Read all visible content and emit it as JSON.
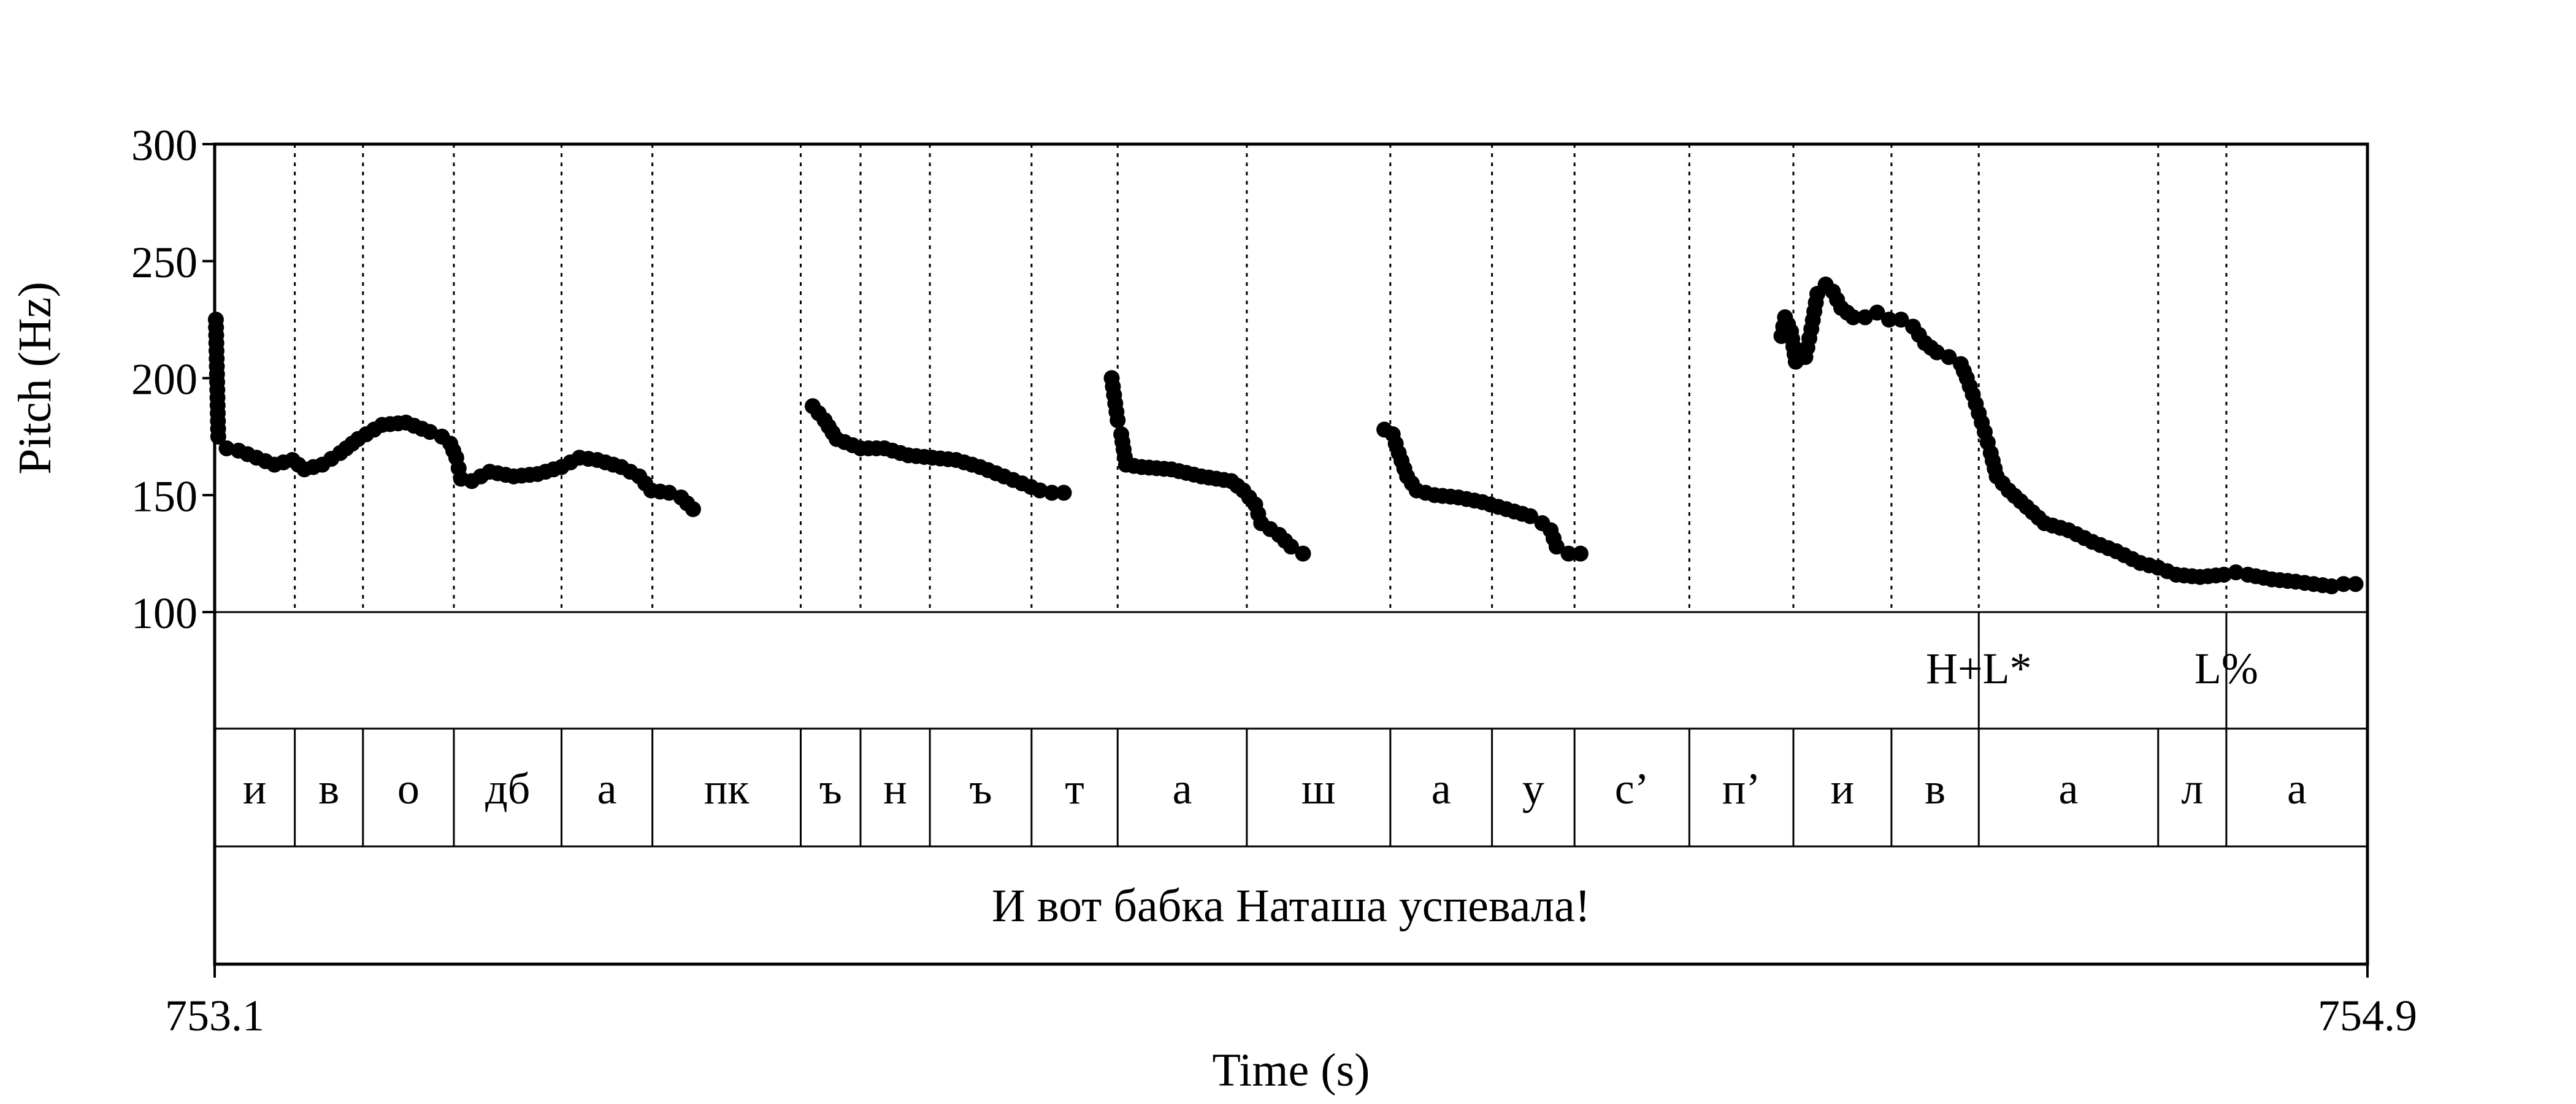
{
  "chart_data": {
    "type": "scatter",
    "xlabel": "Time (s)",
    "ylabel": "Pitch (Hz)",
    "xlim": [
      753.1,
      754.9
    ],
    "ylim": [
      100,
      300
    ],
    "yticks": [
      100,
      150,
      200,
      250,
      300
    ],
    "xtick_labels": [
      "753.1",
      "754.9"
    ],
    "grid": "dotted vertical lines at segment boundaries",
    "point_color": "#000000",
    "segment_boundaries": [
      753.1,
      753.167,
      753.224,
      753.3,
      753.39,
      753.466,
      753.59,
      753.64,
      753.698,
      753.783,
      753.855,
      753.963,
      754.083,
      754.168,
      754.237,
      754.333,
      754.42,
      754.502,
      754.575,
      754.725,
      754.782,
      754.9
    ],
    "segments": [
      "и",
      "в",
      "о",
      "дб",
      "а",
      "пк",
      "ъ",
      "н",
      "ъ",
      "т",
      "а",
      "ш",
      "а",
      "у",
      "с’",
      "п’",
      "и",
      "в",
      "а",
      "л",
      "а"
    ],
    "tones": [
      {
        "label": "H+L*",
        "time": 754.575
      },
      {
        "label": "L%",
        "time": 754.782
      }
    ],
    "sentence": "И вот бабка Наташа успевала!",
    "contour": [
      [
        [
          753.101,
          225
        ],
        [
          753.103,
          175
        ],
        [
          753.11,
          170
        ],
        [
          753.12,
          169
        ],
        [
          753.135,
          166
        ],
        [
          753.15,
          163
        ],
        [
          753.165,
          165
        ],
        [
          753.175,
          161
        ],
        [
          753.19,
          163
        ],
        [
          753.205,
          168
        ],
        [
          753.22,
          174
        ],
        [
          753.24,
          180
        ],
        [
          753.26,
          181
        ],
        [
          753.28,
          177
        ],
        [
          753.29,
          175
        ],
        [
          753.297,
          172
        ],
        [
          753.302,
          166
        ],
        [
          753.306,
          157
        ],
        [
          753.315,
          156
        ],
        [
          753.33,
          160
        ],
        [
          753.35,
          158
        ],
        [
          753.37,
          159
        ],
        [
          753.39,
          162
        ],
        [
          753.405,
          166
        ],
        [
          753.42,
          165
        ],
        [
          753.44,
          162
        ],
        [
          753.455,
          158
        ],
        [
          753.465,
          152
        ],
        [
          753.48,
          151
        ],
        [
          753.49,
          149
        ],
        [
          753.5,
          144
        ]
      ],
      [
        [
          753.6,
          188
        ],
        [
          753.61,
          182
        ],
        [
          753.62,
          174
        ],
        [
          753.64,
          170
        ],
        [
          753.66,
          170
        ],
        [
          753.68,
          167
        ],
        [
          753.7,
          166
        ],
        [
          753.72,
          165
        ],
        [
          753.74,
          162
        ],
        [
          753.76,
          158
        ],
        [
          753.775,
          155
        ],
        [
          753.79,
          152
        ],
        [
          753.8,
          151
        ],
        [
          753.81,
          151
        ]
      ],
      [
        [
          753.85,
          200
        ],
        [
          753.855,
          182
        ],
        [
          753.858,
          176
        ],
        [
          753.862,
          163
        ],
        [
          753.875,
          162
        ],
        [
          753.9,
          161
        ],
        [
          753.925,
          158
        ],
        [
          753.95,
          156
        ],
        [
          753.96,
          152
        ],
        [
          753.97,
          146
        ],
        [
          753.975,
          138
        ],
        [
          753.99,
          133
        ],
        [
          754.0,
          128
        ],
        [
          754.01,
          125
        ]
      ],
      [
        [
          754.078,
          178
        ],
        [
          754.085,
          176
        ],
        [
          754.09,
          168
        ],
        [
          754.097,
          158
        ],
        [
          754.105,
          152
        ],
        [
          754.12,
          150
        ],
        [
          754.14,
          149
        ],
        [
          754.16,
          147
        ],
        [
          754.18,
          144
        ],
        [
          754.2,
          141
        ],
        [
          754.21,
          138
        ],
        [
          754.217,
          135
        ],
        [
          754.222,
          128
        ],
        [
          754.232,
          125
        ],
        [
          754.242,
          125
        ]
      ],
      [
        [
          754.41,
          218
        ],
        [
          754.413,
          226
        ],
        [
          754.418,
          220
        ],
        [
          754.422,
          207
        ],
        [
          754.43,
          209
        ],
        [
          754.435,
          221
        ],
        [
          754.44,
          236
        ],
        [
          754.447,
          240
        ],
        [
          754.453,
          237
        ],
        [
          754.46,
          230
        ],
        [
          754.47,
          226
        ],
        [
          754.48,
          226
        ],
        [
          754.49,
          228
        ],
        [
          754.5,
          225
        ],
        [
          754.51,
          225
        ],
        [
          754.52,
          222
        ],
        [
          754.53,
          215
        ],
        [
          754.54,
          211
        ],
        [
          754.55,
          209
        ],
        [
          754.56,
          206
        ],
        [
          754.565,
          200
        ],
        [
          754.57,
          193
        ],
        [
          754.575,
          185
        ],
        [
          754.58,
          177
        ],
        [
          754.585,
          168
        ],
        [
          754.59,
          158
        ],
        [
          754.6,
          152
        ],
        [
          754.615,
          145
        ],
        [
          754.63,
          138
        ],
        [
          754.65,
          135
        ],
        [
          754.67,
          130
        ],
        [
          754.69,
          126
        ],
        [
          754.71,
          121
        ],
        [
          754.725,
          119
        ],
        [
          754.74,
          116
        ],
        [
          754.76,
          115
        ],
        [
          754.78,
          116
        ],
        [
          754.79,
          117
        ],
        [
          754.8,
          116
        ],
        [
          754.82,
          114
        ],
        [
          754.84,
          113
        ],
        [
          754.855,
          112
        ],
        [
          754.87,
          111
        ],
        [
          754.88,
          112
        ],
        [
          754.89,
          112
        ]
      ]
    ]
  }
}
